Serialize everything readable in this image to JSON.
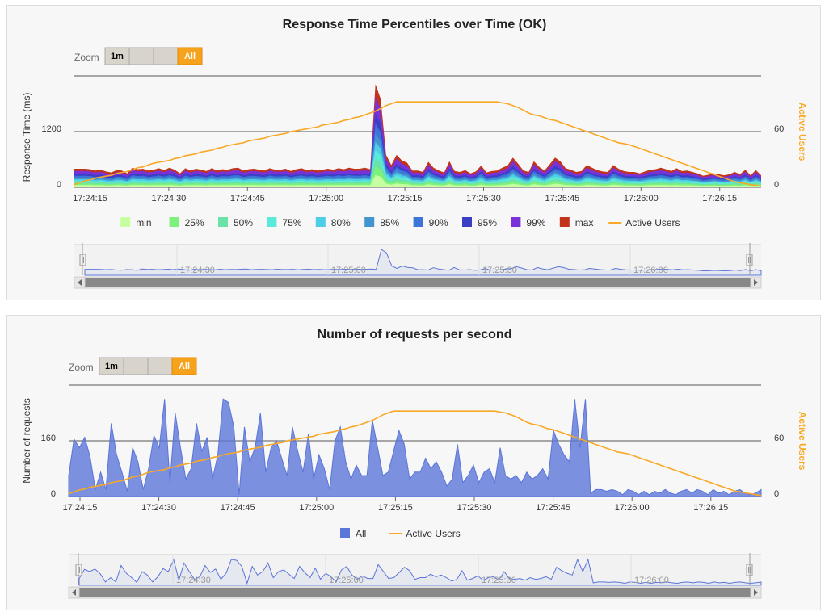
{
  "charts": [
    {
      "id": "response-time",
      "title": "Response Time Percentiles over Time (OK)",
      "zoom": {
        "label": "Zoom",
        "buttons": [
          "1m",
          "",
          "",
          "All"
        ],
        "active": "All"
      },
      "y_left": {
        "title": "Response Time (ms)",
        "ticks": [
          "0",
          "1200"
        ],
        "max": 2400
      },
      "y_right": {
        "title": "Active Users",
        "ticks": [
          "0",
          "60"
        ],
        "max": 120
      },
      "x_ticks": [
        "17:24:15",
        "17:24:30",
        "17:24:45",
        "17:25:00",
        "17:25:15",
        "17:25:30",
        "17:25:45",
        "17:26:00",
        "17:26:15"
      ],
      "nav_ticks": [
        "17:24:30",
        "17:25:00",
        "17:25:30",
        "17:26:00"
      ],
      "legend": [
        {
          "name": "min",
          "color": "#c5ff9f"
        },
        {
          "name": "25%",
          "color": "#7cf17c"
        },
        {
          "name": "50%",
          "color": "#6ce3a6"
        },
        {
          "name": "75%",
          "color": "#5aeada"
        },
        {
          "name": "80%",
          "color": "#4dcde6"
        },
        {
          "name": "85%",
          "color": "#4494cf"
        },
        {
          "name": "90%",
          "color": "#3d74d8"
        },
        {
          "name": "95%",
          "color": "#3b3fc5"
        },
        {
          "name": "99%",
          "color": "#7a32d8"
        },
        {
          "name": "max",
          "color": "#c2331b"
        },
        {
          "name": "Active Users",
          "color": "#f9a825",
          "line": true
        }
      ]
    },
    {
      "id": "requests",
      "title": "Number of requests per second",
      "zoom": {
        "label": "Zoom",
        "buttons": [
          "1m",
          "",
          "",
          "All"
        ],
        "active": "All"
      },
      "y_left": {
        "title": "Number of requests",
        "ticks": [
          "0",
          "160"
        ],
        "max": 320
      },
      "y_right": {
        "title": "Active Users",
        "ticks": [
          "0",
          "60"
        ],
        "max": 120
      },
      "x_ticks": [
        "17:24:15",
        "17:24:30",
        "17:24:45",
        "17:25:00",
        "17:25:15",
        "17:25:30",
        "17:25:45",
        "17:26:00",
        "17:26:15"
      ],
      "nav_ticks": [
        "17:24:30",
        "17:25:00",
        "17:25:30",
        "17:26:00"
      ],
      "legend": [
        {
          "name": "All",
          "color": "#5b75d8"
        },
        {
          "name": "Active Users",
          "color": "#f9a825",
          "line": true
        }
      ]
    }
  ],
  "chart_data": [
    {
      "type": "area",
      "title": "Response Time Percentiles over Time (OK)",
      "ylabel": "Response Time (ms)",
      "ylabel_right": "Active Users",
      "ylim": [
        0,
        2400
      ],
      "ylim_right": [
        0,
        120
      ],
      "x_start": "17:24:12",
      "x_step_seconds": 1,
      "x_end": "17:26:22",
      "legend_position": "bottom",
      "max_series": [
        400,
        400,
        400,
        390,
        360,
        380,
        340,
        320,
        370,
        360,
        300,
        420,
        390,
        400,
        360,
        380,
        410,
        370,
        420,
        380,
        300,
        410,
        360,
        400,
        380,
        350,
        410,
        360,
        390,
        380,
        410,
        420,
        360,
        390,
        400,
        380,
        360,
        410,
        380,
        380,
        400,
        350,
        390,
        410,
        370,
        390,
        360,
        380,
        400,
        380,
        410,
        390,
        420,
        400,
        400,
        420,
        390,
        2220,
        1900,
        700,
        480,
        700,
        580,
        530,
        360,
        360,
        330,
        550,
        420,
        360,
        320,
        560,
        350,
        330,
        370,
        300,
        340,
        470,
        320,
        350,
        360,
        420,
        470,
        640,
        510,
        360,
        330,
        560,
        440,
        360,
        500,
        640,
        560,
        410,
        380,
        330,
        350,
        480,
        420,
        370,
        340,
        330,
        480,
        400,
        350,
        330,
        330,
        300,
        340,
        380,
        390,
        420,
        390,
        350,
        410,
        350,
        360,
        330,
        300,
        250,
        270,
        300,
        280,
        260,
        280,
        330,
        280,
        380,
        260,
        370,
        260
      ],
      "active_users": [
        3,
        5,
        7,
        8,
        10,
        11,
        12,
        13,
        15,
        16,
        17,
        19,
        21,
        22,
        24,
        26,
        27,
        28,
        29,
        31,
        32,
        34,
        35,
        36,
        38,
        39,
        40,
        42,
        43,
        45,
        46,
        47,
        48,
        50,
        51,
        52,
        53,
        55,
        56,
        57,
        58,
        60,
        61,
        62,
        63,
        64,
        65,
        67,
        68,
        69,
        70,
        72,
        73,
        75,
        76,
        78,
        80,
        82,
        85,
        88,
        90,
        92,
        92,
        92,
        92,
        92,
        92,
        92,
        92,
        92,
        92,
        92,
        92,
        92,
        92,
        92,
        92,
        92,
        92,
        92,
        92,
        91,
        90,
        88,
        86,
        83,
        80,
        78,
        77,
        75,
        73,
        72,
        70,
        68,
        66,
        64,
        62,
        60,
        58,
        56,
        54,
        52,
        50,
        48,
        47,
        46,
        44,
        42,
        40,
        38,
        36,
        34,
        32,
        30,
        28,
        26,
        24,
        22,
        20,
        18,
        16,
        14,
        12,
        10,
        8,
        6,
        5,
        4,
        3,
        2,
        1,
        0
      ]
    },
    {
      "type": "area",
      "title": "Number of requests per second",
      "ylabel": "Number of requests",
      "ylabel_right": "Active Users",
      "ylim": [
        0,
        320
      ],
      "ylim_right": [
        0,
        120
      ],
      "x_start": "17:24:12",
      "x_step_seconds": 1,
      "x_end": "17:26:22",
      "legend_position": "bottom",
      "series": [
        {
          "name": "All",
          "values": [
            60,
            165,
            140,
            170,
            115,
            20,
            70,
            20,
            210,
            120,
            70,
            15,
            140,
            100,
            20,
            80,
            175,
            140,
            280,
            40,
            240,
            140,
            50,
            80,
            210,
            130,
            170,
            50,
            120,
            280,
            270,
            200,
            5,
            200,
            100,
            140,
            240,
            70,
            140,
            160,
            110,
            60,
            200,
            130,
            70,
            180,
            50,
            120,
            80,
            20,
            160,
            200,
            100,
            50,
            90,
            60,
            60,
            220,
            140,
            60,
            70,
            130,
            190,
            150,
            50,
            70,
            70,
            110,
            80,
            100,
            70,
            30,
            50,
            150,
            40,
            60,
            90,
            40,
            70,
            80,
            40,
            140,
            60,
            50,
            60,
            40,
            70,
            50,
            60,
            80,
            50,
            190,
            150,
            120,
            100,
            280,
            140,
            280,
            10,
            20,
            20,
            15,
            20,
            15,
            5,
            20,
            15,
            5,
            15,
            5,
            15,
            10,
            20,
            10,
            5,
            15,
            20,
            10,
            20,
            15,
            5,
            20,
            10,
            15,
            5,
            15,
            20,
            10,
            5,
            10,
            20
          ]
        },
        {
          "name": "Active Users",
          "values": [
            3,
            5,
            7,
            8,
            10,
            11,
            12,
            13,
            15,
            16,
            17,
            19,
            21,
            22,
            24,
            26,
            27,
            28,
            29,
            31,
            32,
            34,
            35,
            36,
            38,
            39,
            40,
            42,
            43,
            45,
            46,
            47,
            48,
            50,
            51,
            52,
            53,
            55,
            56,
            57,
            58,
            60,
            61,
            62,
            63,
            64,
            65,
            67,
            68,
            69,
            70,
            72,
            73,
            75,
            76,
            78,
            80,
            82,
            85,
            88,
            90,
            92,
            92,
            92,
            92,
            92,
            92,
            92,
            92,
            92,
            92,
            92,
            92,
            92,
            92,
            92,
            92,
            92,
            92,
            92,
            92,
            91,
            90,
            88,
            86,
            83,
            80,
            78,
            77,
            75,
            73,
            72,
            70,
            68,
            66,
            64,
            62,
            60,
            58,
            56,
            54,
            52,
            50,
            48,
            47,
            46,
            44,
            42,
            40,
            38,
            36,
            34,
            32,
            30,
            28,
            26,
            24,
            22,
            20,
            18,
            16,
            14,
            12,
            10,
            8,
            6,
            5,
            4,
            3,
            2,
            1,
            0
          ]
        }
      ]
    }
  ]
}
